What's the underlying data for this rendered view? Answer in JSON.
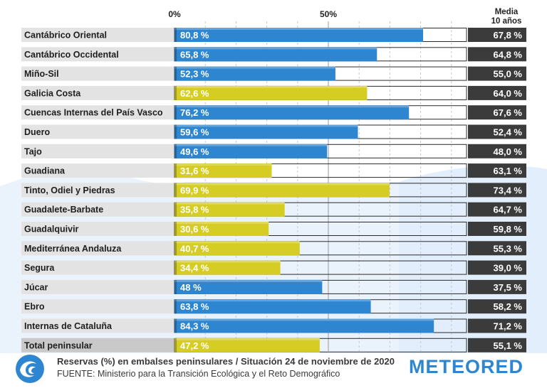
{
  "chart_data": {
    "type": "bar",
    "orientation": "horizontal",
    "axis_ticks": [
      "0%",
      "50%"
    ],
    "xlim": [
      0,
      100
    ],
    "avg_header": [
      "Media",
      "10 años"
    ],
    "categories": [
      "Cantábrico Oriental",
      "Cantábrico Occidental",
      "Miño-Sil",
      "Galicia Costa",
      "Cuencas Internas del País Vasco",
      "Duero",
      "Tajo",
      "Guadiana",
      "Tinto, Odiel y Piedras",
      "Guadalete-Barbate",
      "Guadalquivir",
      "Mediterránea Andaluza",
      "Segura",
      "Júcar",
      "Ebro",
      "Internas de Cataluña",
      "Total peninsular"
    ],
    "values": [
      80.8,
      65.8,
      52.3,
      62.6,
      76.2,
      59.6,
      49.6,
      31.6,
      69.9,
      35.8,
      30.6,
      40.7,
      34.4,
      48,
      63.8,
      84.3,
      47.2
    ],
    "value_labels": [
      "80,8 %",
      "65,8 %",
      "52,3 %",
      "62,6 %",
      "76,2 %",
      "59,6 %",
      "49,6 %",
      "31,6 %",
      "69,9 %",
      "35,8 %",
      "30,6 %",
      "40,7 %",
      "34,4 %",
      "48 %",
      "63,8 %",
      "84,3 %",
      "47,2 %"
    ],
    "bar_colors": [
      "blue",
      "blue",
      "blue",
      "yellow",
      "blue",
      "blue",
      "blue",
      "yellow",
      "yellow",
      "yellow",
      "yellow",
      "yellow",
      "yellow",
      "blue",
      "blue",
      "blue",
      "yellow"
    ],
    "averages_10y": [
      "67,8 %",
      "64,8 %",
      "55,0 %",
      "64,0 %",
      "67,6 %",
      "52,4 %",
      "48,0 %",
      "63,1 %",
      "73,4 %",
      "64,7 %",
      "59,8 %",
      "55,3 %",
      "39,0 %",
      "37,5 %",
      "58,2 %",
      "71,2 %",
      "55,1 %"
    ]
  },
  "colors": {
    "blue": "#2f86d0",
    "yellow": "#d6cd24",
    "label_bg": "#e3e3e3",
    "total_label_bg": "#c9c9c9",
    "avg_bg": "#3b3b3b",
    "avg_text": "#ffffff",
    "track_border": "#2b2b2b",
    "brand": "#2f86d0"
  },
  "footer": {
    "title": "Reservas (%) en embalses peninsulares / Situación 24 de noviembre de 2020",
    "source": "FUENTE: Ministerio para la Transición Ecológica y el Reto Demográfico",
    "brand": "METEORED"
  },
  "icons": {
    "logo": "wave-swirl-icon"
  }
}
